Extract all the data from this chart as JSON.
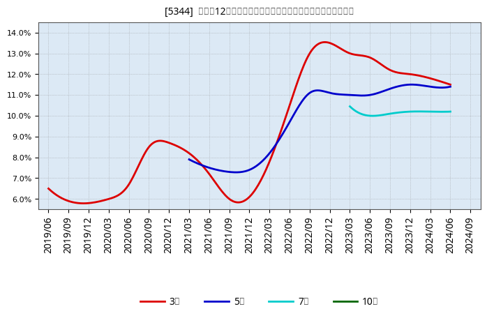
{
  "title": "[5344]  売上高12か月移動合計の対前年同期増減率の標準偏差の推移",
  "ylim": [
    0.055,
    0.145
  ],
  "yticks": [
    0.06,
    0.07,
    0.08,
    0.09,
    0.1,
    0.11,
    0.12,
    0.13,
    0.14
  ],
  "background_color": "#ffffff",
  "plot_bg_color": "#dce9f5",
  "grid_color": "#888888",
  "series": {
    "3year": {
      "color": "#dd0000",
      "label": "3年",
      "dates": [
        "2019/06",
        "2019/09",
        "2019/12",
        "2020/03",
        "2020/06",
        "2020/09",
        "2020/12",
        "2021/03",
        "2021/06",
        "2021/09",
        "2021/12",
        "2022/03",
        "2022/06",
        "2022/09",
        "2022/12",
        "2023/03",
        "2023/06",
        "2023/09",
        "2023/12",
        "2024/03",
        "2024/06"
      ],
      "values": [
        0.065,
        0.059,
        0.058,
        0.06,
        0.067,
        0.085,
        0.087,
        0.082,
        0.072,
        0.06,
        0.061,
        0.078,
        0.105,
        0.13,
        0.135,
        0.13,
        0.128,
        0.122,
        0.12,
        0.118,
        0.115
      ]
    },
    "5year": {
      "color": "#0000cc",
      "label": "5年",
      "dates": [
        "2021/03",
        "2021/06",
        "2021/09",
        "2021/12",
        "2022/03",
        "2022/06",
        "2022/09",
        "2022/12",
        "2023/03",
        "2023/06",
        "2023/09",
        "2023/12",
        "2024/03",
        "2024/06"
      ],
      "values": [
        0.079,
        0.075,
        0.073,
        0.074,
        0.082,
        0.097,
        0.111,
        0.111,
        0.11,
        0.11,
        0.113,
        0.115,
        0.114,
        0.114
      ]
    },
    "7year": {
      "color": "#00cccc",
      "label": "7年",
      "dates": [
        "2023/03",
        "2023/06",
        "2023/09",
        "2023/12",
        "2024/03",
        "2024/06"
      ],
      "values": [
        0.1045,
        0.1,
        0.101,
        0.102,
        0.102,
        0.102
      ]
    },
    "10year": {
      "color": "#006600",
      "label": "10年",
      "dates": [],
      "values": []
    }
  },
  "xtick_labels": [
    "2019/06",
    "2019/09",
    "2019/12",
    "2020/03",
    "2020/06",
    "2020/09",
    "2020/12",
    "2021/03",
    "2021/06",
    "2021/09",
    "2021/12",
    "2022/03",
    "2022/06",
    "2022/09",
    "2022/12",
    "2023/03",
    "2023/06",
    "2023/09",
    "2023/12",
    "2024/03",
    "2024/06",
    "2024/09"
  ]
}
